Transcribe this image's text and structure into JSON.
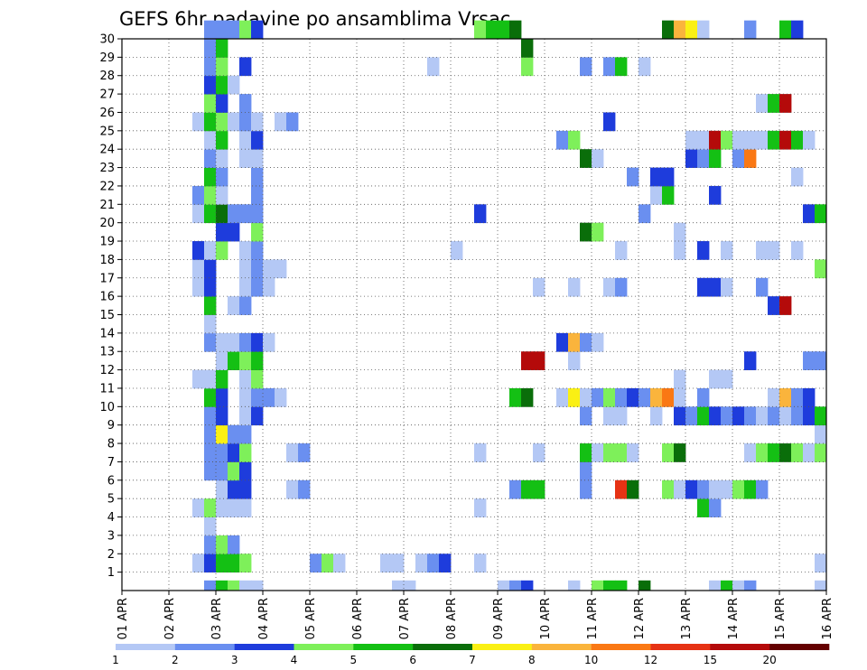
{
  "chart_data": {
    "type": "heatmap",
    "title": "GEFS 6hr padavine po ansamblima Vrsac",
    "xlabel": "",
    "ylabel": "",
    "x_tick_labels": [
      "01 APR",
      "02 APR",
      "03 APR",
      "04 APR",
      "05 APR",
      "06 APR",
      "07 APR",
      "08 APR",
      "09 APR",
      "10 APR",
      "11 APR",
      "12 APR",
      "13 APR",
      "14 APR",
      "15 APR",
      "16 APR"
    ],
    "y_tick_labels": [
      "1",
      "2",
      "3",
      "4",
      "5",
      "6",
      "7",
      "8",
      "9",
      "10",
      "11",
      "12",
      "13",
      "14",
      "15",
      "16",
      "17",
      "18",
      "19",
      "20",
      "21",
      "22",
      "23",
      "24",
      "25",
      "26",
      "27",
      "28",
      "29",
      "30"
    ],
    "x_range_steps": [
      0,
      60
    ],
    "y_range_members": [
      0,
      30
    ],
    "legend": {
      "placement": "bottom",
      "bounds": [
        "1",
        "2",
        "3",
        "4",
        "5",
        "6",
        "7",
        "8",
        "10",
        "12",
        "15",
        "20"
      ],
      "colors": [
        "#b4c8f5",
        "#6a8ff0",
        "#1e3cdc",
        "#7ef05a",
        "#14c014",
        "#0a6e0a",
        "#faf014",
        "#fab43c",
        "#fa7814",
        "#e63214",
        "#b40a0a",
        "#640000"
      ]
    },
    "cells": [
      [
        0,
        7,
        2
      ],
      [
        0,
        8,
        5
      ],
      [
        0,
        9,
        4
      ],
      [
        0,
        10,
        1
      ],
      [
        0,
        11,
        1
      ],
      [
        0,
        23,
        1
      ],
      [
        0,
        24,
        1
      ],
      [
        0,
        32,
        1
      ],
      [
        0,
        33,
        2
      ],
      [
        0,
        34,
        3
      ],
      [
        0,
        38,
        1
      ],
      [
        0,
        40,
        4
      ],
      [
        0,
        41,
        5
      ],
      [
        0,
        42,
        5
      ],
      [
        0,
        44,
        6
      ],
      [
        0,
        50,
        1
      ],
      [
        0,
        51,
        5
      ],
      [
        0,
        52,
        1
      ],
      [
        0,
        53,
        2
      ],
      [
        0,
        59,
        1
      ],
      [
        1,
        6,
        1
      ],
      [
        1,
        7,
        3
      ],
      [
        1,
        8,
        5
      ],
      [
        1,
        9,
        5
      ],
      [
        1,
        10,
        4
      ],
      [
        1,
        16,
        2
      ],
      [
        1,
        17,
        4
      ],
      [
        1,
        18,
        1
      ],
      [
        1,
        22,
        1
      ],
      [
        1,
        23,
        1
      ],
      [
        1,
        25,
        1
      ],
      [
        1,
        26,
        2
      ],
      [
        1,
        27,
        3
      ],
      [
        1,
        30,
        1
      ],
      [
        1,
        59,
        1
      ],
      [
        2,
        7,
        2
      ],
      [
        2,
        8,
        4
      ],
      [
        2,
        9,
        2
      ],
      [
        3,
        7,
        1
      ],
      [
        4,
        6,
        1
      ],
      [
        4,
        7,
        4
      ],
      [
        4,
        8,
        1
      ],
      [
        4,
        9,
        1
      ],
      [
        4,
        10,
        1
      ],
      [
        4,
        30,
        1
      ],
      [
        4,
        49,
        5
      ],
      [
        4,
        50,
        2
      ],
      [
        5,
        8,
        1
      ],
      [
        5,
        9,
        3
      ],
      [
        5,
        10,
        3
      ],
      [
        5,
        14,
        1
      ],
      [
        5,
        15,
        2
      ],
      [
        5,
        33,
        2
      ],
      [
        5,
        34,
        5
      ],
      [
        5,
        35,
        5
      ],
      [
        5,
        39,
        2
      ],
      [
        5,
        42,
        10
      ],
      [
        5,
        43,
        6
      ],
      [
        5,
        46,
        4
      ],
      [
        5,
        47,
        1
      ],
      [
        5,
        48,
        3
      ],
      [
        5,
        49,
        2
      ],
      [
        5,
        50,
        1
      ],
      [
        5,
        51,
        1
      ],
      [
        5,
        52,
        4
      ],
      [
        5,
        53,
        5
      ],
      [
        5,
        54,
        2
      ],
      [
        6,
        7,
        2
      ],
      [
        6,
        8,
        2
      ],
      [
        6,
        9,
        4
      ],
      [
        6,
        10,
        3
      ],
      [
        6,
        39,
        2
      ],
      [
        7,
        7,
        2
      ],
      [
        7,
        8,
        2
      ],
      [
        7,
        9,
        3
      ],
      [
        7,
        10,
        4
      ],
      [
        7,
        14,
        1
      ],
      [
        7,
        15,
        2
      ],
      [
        7,
        30,
        1
      ],
      [
        7,
        35,
        1
      ],
      [
        7,
        39,
        5
      ],
      [
        7,
        40,
        1
      ],
      [
        7,
        41,
        4
      ],
      [
        7,
        42,
        4
      ],
      [
        7,
        43,
        1
      ],
      [
        7,
        46,
        4
      ],
      [
        7,
        47,
        6
      ],
      [
        7,
        53,
        1
      ],
      [
        7,
        54,
        4
      ],
      [
        7,
        55,
        5
      ],
      [
        7,
        56,
        6
      ],
      [
        7,
        57,
        4
      ],
      [
        7,
        58,
        1
      ],
      [
        7,
        59,
        4
      ],
      [
        8,
        7,
        2
      ],
      [
        8,
        8,
        7
      ],
      [
        8,
        9,
        2
      ],
      [
        8,
        10,
        2
      ],
      [
        8,
        59,
        1
      ],
      [
        9,
        7,
        2
      ],
      [
        9,
        8,
        3
      ],
      [
        9,
        10,
        1
      ],
      [
        9,
        11,
        3
      ],
      [
        9,
        39,
        2
      ],
      [
        9,
        41,
        1
      ],
      [
        9,
        42,
        1
      ],
      [
        9,
        45,
        1
      ],
      [
        9,
        47,
        3
      ],
      [
        9,
        48,
        2
      ],
      [
        9,
        49,
        5
      ],
      [
        9,
        50,
        3
      ],
      [
        9,
        51,
        2
      ],
      [
        9,
        52,
        3
      ],
      [
        9,
        53,
        2
      ],
      [
        9,
        54,
        1
      ],
      [
        9,
        55,
        2
      ],
      [
        9,
        56,
        1
      ],
      [
        9,
        57,
        2
      ],
      [
        9,
        58,
        3
      ],
      [
        9,
        59,
        5
      ],
      [
        10,
        7,
        5
      ],
      [
        10,
        8,
        3
      ],
      [
        10,
        10,
        1
      ],
      [
        10,
        11,
        2
      ],
      [
        10,
        12,
        2
      ],
      [
        10,
        13,
        1
      ],
      [
        10,
        33,
        5
      ],
      [
        10,
        34,
        6
      ],
      [
        10,
        37,
        1
      ],
      [
        10,
        38,
        7
      ],
      [
        10,
        39,
        1
      ],
      [
        10,
        40,
        2
      ],
      [
        10,
        41,
        4
      ],
      [
        10,
        42,
        2
      ],
      [
        10,
        43,
        3
      ],
      [
        10,
        44,
        2
      ],
      [
        10,
        45,
        8
      ],
      [
        10,
        46,
        9
      ],
      [
        10,
        47,
        1
      ],
      [
        10,
        49,
        2
      ],
      [
        10,
        55,
        1
      ],
      [
        10,
        56,
        8
      ],
      [
        10,
        57,
        2
      ],
      [
        10,
        58,
        3
      ],
      [
        11,
        6,
        1
      ],
      [
        11,
        7,
        1
      ],
      [
        11,
        8,
        5
      ],
      [
        11,
        10,
        1
      ],
      [
        11,
        11,
        4
      ],
      [
        11,
        47,
        1
      ],
      [
        11,
        50,
        1
      ],
      [
        11,
        51,
        1
      ],
      [
        12,
        8,
        1
      ],
      [
        12,
        9,
        5
      ],
      [
        12,
        10,
        4
      ],
      [
        12,
        11,
        5
      ],
      [
        12,
        34,
        11
      ],
      [
        12,
        35,
        11
      ],
      [
        12,
        38,
        1
      ],
      [
        12,
        53,
        3
      ],
      [
        12,
        58,
        2
      ],
      [
        12,
        59,
        2
      ],
      [
        13,
        7,
        2
      ],
      [
        13,
        8,
        1
      ],
      [
        13,
        9,
        1
      ],
      [
        13,
        10,
        2
      ],
      [
        13,
        11,
        3
      ],
      [
        13,
        12,
        1
      ],
      [
        13,
        37,
        3
      ],
      [
        13,
        38,
        8
      ],
      [
        13,
        39,
        2
      ],
      [
        13,
        40,
        1
      ],
      [
        14,
        7,
        1
      ],
      [
        15,
        7,
        5
      ],
      [
        15,
        9,
        1
      ],
      [
        15,
        10,
        2
      ],
      [
        15,
        55,
        3
      ],
      [
        15,
        56,
        11
      ],
      [
        16,
        6,
        1
      ],
      [
        16,
        7,
        3
      ],
      [
        16,
        10,
        1
      ],
      [
        16,
        11,
        2
      ],
      [
        16,
        12,
        1
      ],
      [
        16,
        35,
        1
      ],
      [
        16,
        38,
        1
      ],
      [
        16,
        41,
        1
      ],
      [
        16,
        42,
        2
      ],
      [
        16,
        49,
        3
      ],
      [
        16,
        50,
        3
      ],
      [
        16,
        51,
        1
      ],
      [
        16,
        54,
        2
      ],
      [
        17,
        6,
        1
      ],
      [
        17,
        7,
        3
      ],
      [
        17,
        10,
        1
      ],
      [
        17,
        11,
        2
      ],
      [
        17,
        12,
        1
      ],
      [
        17,
        13,
        1
      ],
      [
        17,
        59,
        4
      ],
      [
        18,
        6,
        3
      ],
      [
        18,
        7,
        1
      ],
      [
        18,
        8,
        4
      ],
      [
        18,
        10,
        1
      ],
      [
        18,
        11,
        2
      ],
      [
        18,
        28,
        1
      ],
      [
        18,
        42,
        1
      ],
      [
        18,
        47,
        1
      ],
      [
        18,
        49,
        3
      ],
      [
        18,
        51,
        1
      ],
      [
        18,
        54,
        1
      ],
      [
        18,
        55,
        1
      ],
      [
        18,
        57,
        1
      ],
      [
        19,
        8,
        3
      ],
      [
        19,
        9,
        3
      ],
      [
        19,
        11,
        4
      ],
      [
        19,
        39,
        6
      ],
      [
        19,
        40,
        4
      ],
      [
        19,
        47,
        1
      ],
      [
        20,
        6,
        1
      ],
      [
        20,
        7,
        5
      ],
      [
        20,
        8,
        6
      ],
      [
        20,
        9,
        2
      ],
      [
        20,
        10,
        2
      ],
      [
        20,
        11,
        2
      ],
      [
        20,
        30,
        3
      ],
      [
        20,
        44,
        2
      ],
      [
        20,
        58,
        3
      ],
      [
        20,
        59,
        5
      ],
      [
        21,
        6,
        2
      ],
      [
        21,
        7,
        4
      ],
      [
        21,
        8,
        1
      ],
      [
        21,
        11,
        2
      ],
      [
        21,
        45,
        1
      ],
      [
        21,
        46,
        5
      ],
      [
        21,
        50,
        3
      ],
      [
        22,
        7,
        5
      ],
      [
        22,
        8,
        2
      ],
      [
        22,
        11,
        2
      ],
      [
        22,
        43,
        2
      ],
      [
        22,
        45,
        3
      ],
      [
        22,
        46,
        3
      ],
      [
        22,
        57,
        1
      ],
      [
        23,
        7,
        2
      ],
      [
        23,
        8,
        1
      ],
      [
        23,
        10,
        1
      ],
      [
        23,
        11,
        1
      ],
      [
        23,
        39,
        6
      ],
      [
        23,
        40,
        1
      ],
      [
        23,
        48,
        3
      ],
      [
        23,
        49,
        2
      ],
      [
        23,
        50,
        5
      ],
      [
        23,
        52,
        2
      ],
      [
        23,
        53,
        9
      ],
      [
        24,
        7,
        1
      ],
      [
        24,
        8,
        5
      ],
      [
        24,
        10,
        1
      ],
      [
        24,
        11,
        3
      ],
      [
        24,
        37,
        2
      ],
      [
        24,
        38,
        4
      ],
      [
        24,
        48,
        1
      ],
      [
        24,
        49,
        1
      ],
      [
        24,
        50,
        11
      ],
      [
        24,
        51,
        4
      ],
      [
        24,
        52,
        1
      ],
      [
        24,
        53,
        1
      ],
      [
        24,
        54,
        1
      ],
      [
        24,
        55,
        5
      ],
      [
        24,
        56,
        11
      ],
      [
        24,
        57,
        5
      ],
      [
        24,
        58,
        1
      ],
      [
        25,
        6,
        1
      ],
      [
        25,
        7,
        5
      ],
      [
        25,
        8,
        4
      ],
      [
        25,
        9,
        1
      ],
      [
        25,
        10,
        2
      ],
      [
        25,
        11,
        1
      ],
      [
        25,
        13,
        1
      ],
      [
        25,
        14,
        2
      ],
      [
        25,
        41,
        3
      ],
      [
        26,
        7,
        4
      ],
      [
        26,
        8,
        3
      ],
      [
        26,
        10,
        2
      ],
      [
        26,
        54,
        1
      ],
      [
        26,
        55,
        5
      ],
      [
        26,
        56,
        11
      ],
      [
        27,
        7,
        3
      ],
      [
        27,
        8,
        5
      ],
      [
        27,
        9,
        1
      ],
      [
        28,
        7,
        2
      ],
      [
        28,
        8,
        4
      ],
      [
        28,
        10,
        3
      ],
      [
        28,
        26,
        1
      ],
      [
        28,
        34,
        4
      ],
      [
        28,
        39,
        2
      ],
      [
        28,
        41,
        2
      ],
      [
        28,
        42,
        5
      ],
      [
        28,
        44,
        1
      ],
      [
        29,
        7,
        2
      ],
      [
        29,
        8,
        5
      ],
      [
        29,
        34,
        6
      ],
      [
        30,
        7,
        2
      ],
      [
        30,
        8,
        2
      ],
      [
        30,
        9,
        2
      ],
      [
        30,
        10,
        4
      ],
      [
        30,
        11,
        3
      ],
      [
        30,
        30,
        4
      ],
      [
        30,
        31,
        5
      ],
      [
        30,
        32,
        5
      ],
      [
        30,
        33,
        6
      ],
      [
        30,
        46,
        6
      ],
      [
        30,
        47,
        8
      ],
      [
        30,
        48,
        7
      ],
      [
        30,
        49,
        1
      ],
      [
        30,
        53,
        2
      ],
      [
        30,
        56,
        5
      ],
      [
        30,
        57,
        3
      ]
    ]
  }
}
